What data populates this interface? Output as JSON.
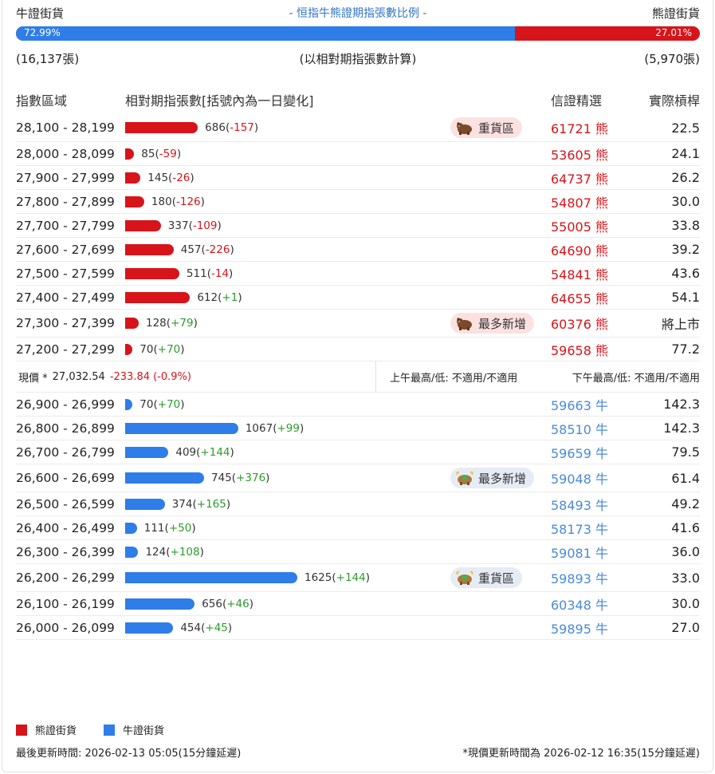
{
  "header": {
    "bull_label": "牛證街貨",
    "title": "- 恒指牛熊證期指張數比例 -",
    "bear_label": "熊證街貨"
  },
  "ratio": {
    "bull_pct": 72.99,
    "bull_text": "72.99%",
    "bear_text": "27.01%"
  },
  "counts": {
    "bull": "(16,137張)",
    "note": "(以相對期指張數計算)",
    "bear": "(5,970張)"
  },
  "columns": {
    "range": "指數區域",
    "qty": "相對期指張數[括號內為一日變化]",
    "pick": "信證精選",
    "leverage": "實際槓桿"
  },
  "bear_rows": [
    {
      "range": "28,100 - 28,199",
      "qty": 686,
      "qty_text": "686",
      "chg": "-157",
      "badge": "重貨區",
      "code": "61721 熊",
      "lev": "22.5"
    },
    {
      "range": "28,000 - 28,099",
      "qty": 85,
      "qty_text": "85",
      "chg": "-59",
      "badge": "",
      "code": "53605 熊",
      "lev": "24.1"
    },
    {
      "range": "27,900 - 27,999",
      "qty": 145,
      "qty_text": "145",
      "chg": "-26",
      "badge": "",
      "code": "64737 熊",
      "lev": "26.2"
    },
    {
      "range": "27,800 - 27,899",
      "qty": 180,
      "qty_text": "180",
      "chg": "-126",
      "badge": "",
      "code": "54807 熊",
      "lev": "30.0"
    },
    {
      "range": "27,700 - 27,799",
      "qty": 337,
      "qty_text": "337",
      "chg": "-109",
      "badge": "",
      "code": "55005 熊",
      "lev": "33.8"
    },
    {
      "range": "27,600 - 27,699",
      "qty": 457,
      "qty_text": "457",
      "chg": "-226",
      "badge": "",
      "code": "64690 熊",
      "lev": "39.2"
    },
    {
      "range": "27,500 - 27,599",
      "qty": 511,
      "qty_text": "511",
      "chg": "-14",
      "badge": "",
      "code": "54841 熊",
      "lev": "43.6"
    },
    {
      "range": "27,400 - 27,499",
      "qty": 612,
      "qty_text": "612",
      "chg": "+1",
      "badge": "",
      "code": "64655 熊",
      "lev": "54.1"
    },
    {
      "range": "27,300 - 27,399",
      "qty": 128,
      "qty_text": "128",
      "chg": "+79",
      "badge": "最多新增",
      "code": "60376 熊",
      "lev": "將上市"
    },
    {
      "range": "27,200 - 27,299",
      "qty": 70,
      "qty_text": "70",
      "chg": "+70",
      "badge": "",
      "code": "59658 熊",
      "lev": "77.2"
    }
  ],
  "price": {
    "label": "現價 *",
    "value": "27,032.54",
    "change": "-233.84 (-0.9%)",
    "am": "上午最高/低: 不適用/不適用",
    "pm": "下午最高/低: 不適用/不適用"
  },
  "bull_rows": [
    {
      "range": "26,900 - 26,999",
      "qty": 70,
      "qty_text": "70",
      "chg": "+70",
      "badge": "",
      "code": "59663 牛",
      "lev": "142.3"
    },
    {
      "range": "26,800 - 26,899",
      "qty": 1067,
      "qty_text": "1067",
      "chg": "+99",
      "badge": "",
      "code": "58510 牛",
      "lev": "142.3"
    },
    {
      "range": "26,700 - 26,799",
      "qty": 409,
      "qty_text": "409",
      "chg": "+144",
      "badge": "",
      "code": "59659 牛",
      "lev": "79.5"
    },
    {
      "range": "26,600 - 26,699",
      "qty": 745,
      "qty_text": "745",
      "chg": "+376",
      "badge": "最多新增",
      "code": "59048 牛",
      "lev": "61.4"
    },
    {
      "range": "26,500 - 26,599",
      "qty": 374,
      "qty_text": "374",
      "chg": "+165",
      "badge": "",
      "code": "58493 牛",
      "lev": "49.2"
    },
    {
      "range": "26,400 - 26,499",
      "qty": 111,
      "qty_text": "111",
      "chg": "+50",
      "badge": "",
      "code": "58173 牛",
      "lev": "41.6"
    },
    {
      "range": "26,300 - 26,399",
      "qty": 124,
      "qty_text": "124",
      "chg": "+108",
      "badge": "",
      "code": "59081 牛",
      "lev": "36.0"
    },
    {
      "range": "26,200 - 26,299",
      "qty": 1625,
      "qty_text": "1625",
      "chg": "+144",
      "badge": "重貨區",
      "code": "59893 牛",
      "lev": "33.0"
    },
    {
      "range": "26,100 - 26,199",
      "qty": 656,
      "qty_text": "656",
      "chg": "+46",
      "badge": "",
      "code": "60348 牛",
      "lev": "30.0"
    },
    {
      "range": "26,000 - 26,099",
      "qty": 454,
      "qty_text": "454",
      "chg": "+45",
      "badge": "",
      "code": "59895 牛",
      "lev": "27.0"
    }
  ],
  "legend": {
    "bear": "熊證街貨",
    "bull": "牛證街貨",
    "bear_color": "#d7141a",
    "bull_color": "#2e7de8"
  },
  "footer": {
    "updated": "最後更新時間: 2026-02-13 05:05(15分鐘延遲)",
    "price_updated": "*現價更新時間為 2026-02-12 16:35(15分鐘延遲)"
  }
}
